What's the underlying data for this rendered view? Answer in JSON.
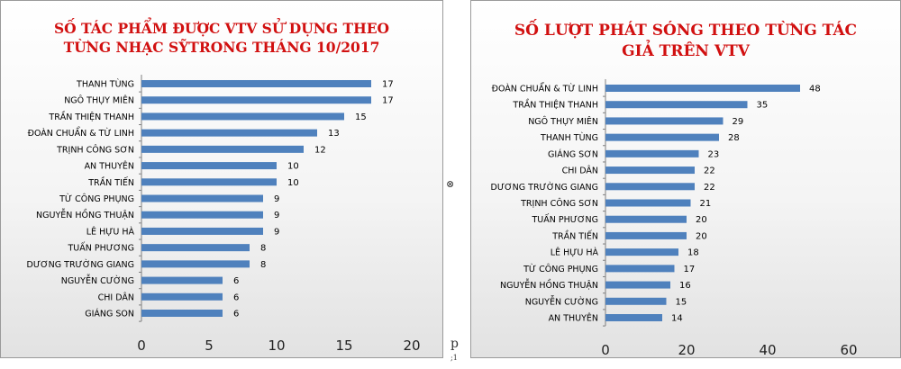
{
  "chart_data": [
    {
      "type": "bar",
      "orientation": "horizontal",
      "title": [
        "SỐ TÁC PHẨM ĐƯỢC VTV SỬ DỤNG THEO",
        "TỪNG NHẠC SỸTRONG THÁNG 10/2017"
      ],
      "categories": [
        "THANH TÙNG",
        "NGÔ THỤY MIÊN",
        "TRẦN THIỆN THANH",
        "ĐOÀN CHUẨN & TỪ LINH",
        "TRỊNH CÔNG SƠN",
        "AN THUYÊN",
        "TRẦN TIẾN",
        "TỪ CÔNG PHỤNG",
        "NGUYỄN HỒNG THUẬN",
        "LÊ HỰU HÀ",
        "TUẤN PHƯƠNG",
        "DƯƠNG TRƯỜNG GIANG",
        "NGUYỄN CƯỜNG",
        "CHI DÂN",
        "GIÁNG SON"
      ],
      "values": [
        17,
        17,
        15,
        13,
        12,
        10,
        10,
        9,
        9,
        9,
        8,
        8,
        6,
        6,
        6
      ],
      "xlim": [
        0,
        20
      ],
      "xticks": [
        0,
        5,
        10,
        15,
        20
      ],
      "bar_color": "#4f81bd",
      "title_color": "#d11010",
      "grid": false,
      "legend": "none"
    },
    {
      "type": "bar",
      "orientation": "horizontal",
      "title": [
        "SỐ LƯỢT PHÁT SÓNG  THEO TỪNG TÁC",
        "GIẢ TRÊN VTV"
      ],
      "categories": [
        "ĐOÀN CHUẨN & TỪ LINH",
        "TRẦN THIỆN THANH",
        "NGÔ THỤY MIÊN",
        "THANH TÙNG",
        "GIÁNG SƠN",
        "CHI DÂN",
        "DƯƠNG TRƯỜNG GIANG",
        "TRỊNH CÔNG SƠN",
        "TUẤN PHƯƠNG",
        "TRẦN TIẾN",
        "LÊ HỰU HÀ",
        "TỪ CÔNG PHỤNG",
        "NGUYỄN HỒNG  THUẬN",
        "NGUYỄN CƯỜNG",
        "AN THUYÊN"
      ],
      "values": [
        48,
        35,
        29,
        28,
        23,
        22,
        22,
        21,
        20,
        20,
        18,
        17,
        16,
        15,
        14
      ],
      "xlim": [
        0,
        60
      ],
      "xticks": [
        0,
        20,
        40,
        60
      ],
      "bar_color": "#4f81bd",
      "title_color": "#d11010",
      "grid": false,
      "legend": "none"
    }
  ],
  "stray_marks": {
    "gap_symbol": "⊗",
    "left_edge_p": "p",
    "left_edge_small": ";1"
  }
}
